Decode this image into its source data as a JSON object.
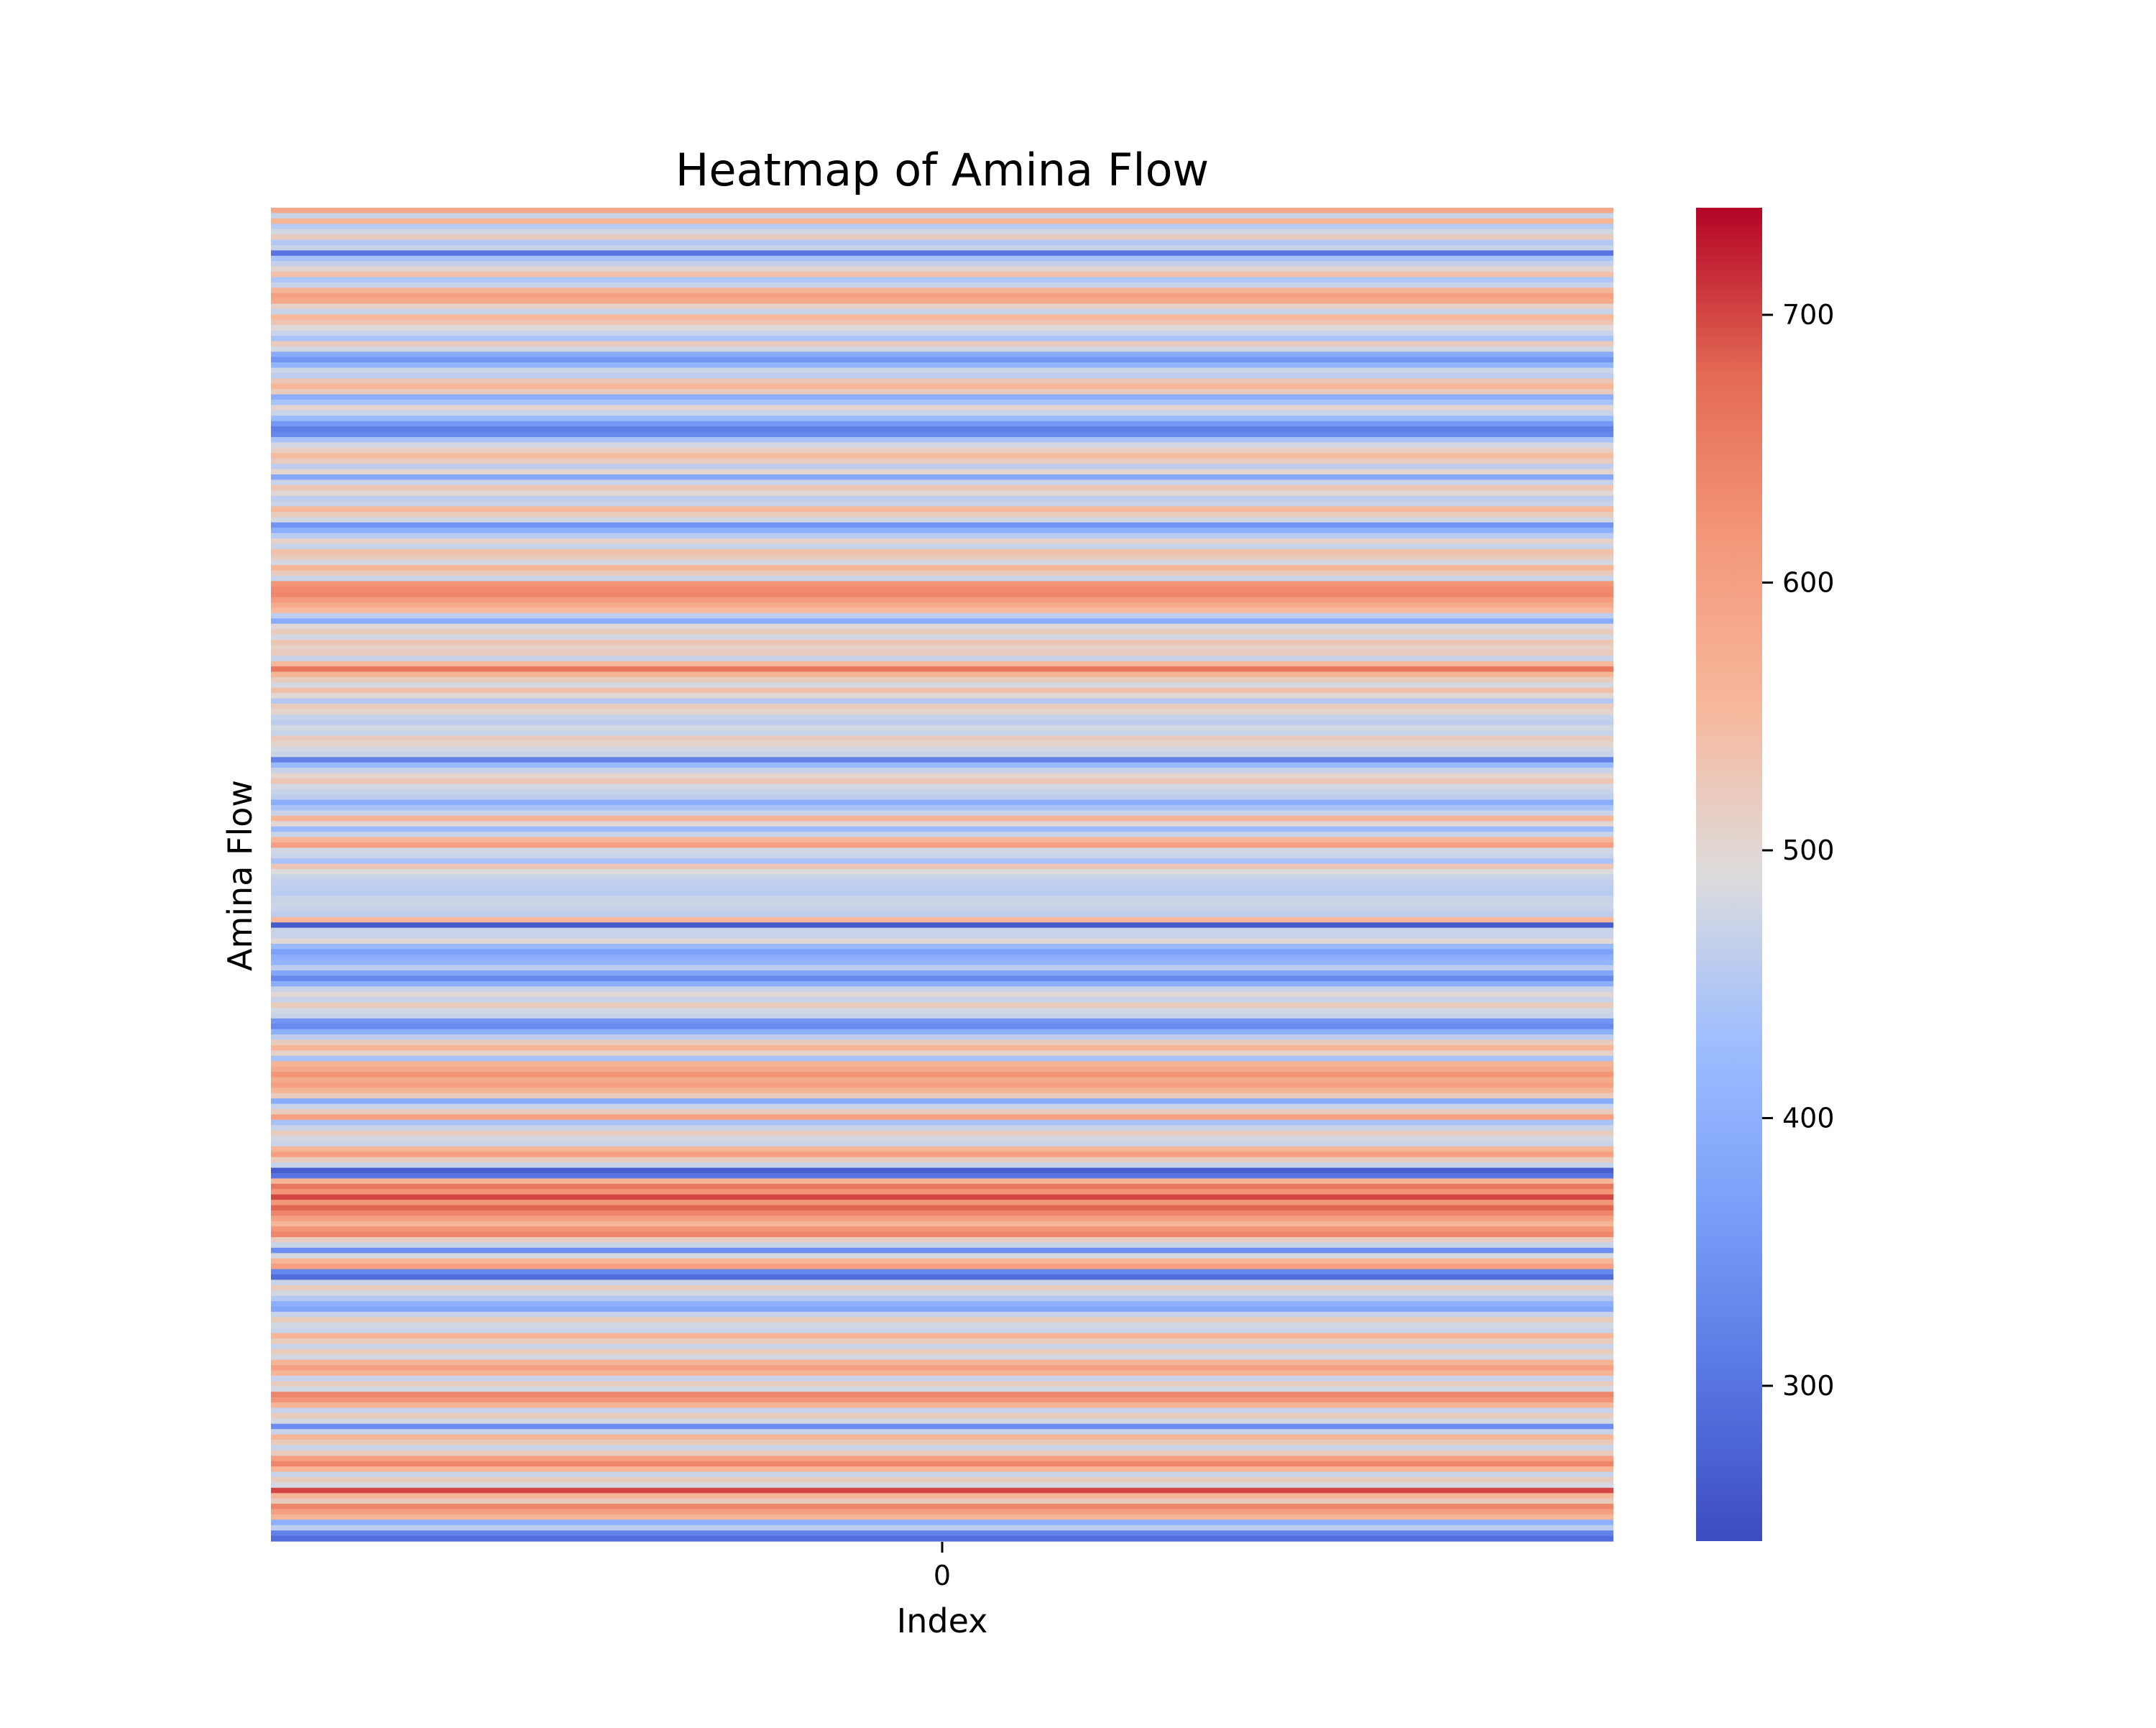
{
  "chart_data": {
    "type": "heatmap",
    "title": "Heatmap of Amina Flow",
    "xlabel": "Index",
    "ylabel": "Amina Flow",
    "x_categories": [
      "0"
    ],
    "colormap": "coolwarm",
    "colorbar": {
      "range": [
        242,
        740
      ],
      "ticks": [
        300,
        400,
        500,
        600,
        700
      ],
      "tick_labels": [
        "300",
        "400",
        "500",
        "600",
        "700"
      ]
    },
    "row_count": 250,
    "values": [
      585,
      470,
      560,
      455,
      480,
      520,
      450,
      470,
      300,
      440,
      465,
      505,
      540,
      445,
      470,
      560,
      600,
      580,
      510,
      470,
      555,
      530,
      495,
      470,
      440,
      520,
      480,
      390,
      350,
      410,
      475,
      460,
      530,
      560,
      520,
      395,
      440,
      505,
      470,
      420,
      355,
      315,
      330,
      440,
      480,
      515,
      550,
      520,
      460,
      505,
      385,
      470,
      530,
      500,
      460,
      470,
      555,
      520,
      480,
      350,
      400,
      455,
      510,
      470,
      540,
      520,
      480,
      560,
      520,
      470,
      620,
      630,
      640,
      610,
      580,
      550,
      460,
      390,
      500,
      520,
      480,
      530,
      510,
      520,
      470,
      555,
      660,
      560,
      520,
      480,
      540,
      500,
      450,
      520,
      505,
      470,
      460,
      480,
      470,
      520,
      505,
      480,
      470,
      320,
      420,
      470,
      505,
      530,
      480,
      470,
      460,
      395,
      440,
      470,
      560,
      500,
      420,
      470,
      560,
      600,
      480,
      470,
      440,
      530,
      490,
      470,
      465,
      460,
      455,
      470,
      475,
      470,
      460,
      555,
      265,
      470,
      470,
      500,
      420,
      370,
      395,
      410,
      460,
      380,
      330,
      395,
      470,
      500,
      470,
      520,
      480,
      470,
      350,
      330,
      400,
      460,
      520,
      560,
      510,
      440,
      560,
      580,
      620,
      580,
      600,
      560,
      520,
      390,
      470,
      520,
      600,
      440,
      470,
      520,
      480,
      470,
      560,
      600,
      520,
      470,
      270,
      300,
      560,
      660,
      620,
      700,
      620,
      680,
      640,
      600,
      560,
      620,
      640,
      520,
      470,
      340,
      480,
      560,
      600,
      330,
      290,
      470,
      520,
      480,
      450,
      400,
      380,
      470,
      520,
      480,
      470,
      560,
      520,
      470,
      520,
      480,
      560,
      600,
      560,
      470,
      520,
      480,
      640,
      620,
      560,
      470,
      520,
      480,
      340,
      470,
      560,
      520,
      470,
      520,
      600,
      640,
      560,
      470,
      520,
      480,
      700,
      560,
      520,
      640,
      600,
      560,
      400,
      460,
      320,
      290
    ]
  }
}
